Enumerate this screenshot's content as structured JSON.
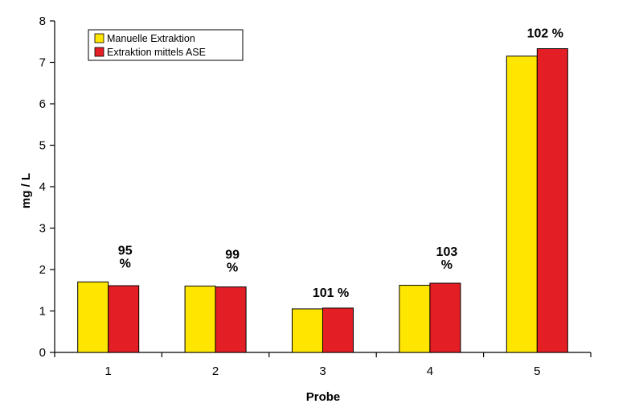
{
  "chart_data": {
    "type": "bar",
    "xlabel": "Probe",
    "ylabel": "mg / L",
    "ylim": [
      0,
      8
    ],
    "yticks": [
      0,
      1,
      2,
      3,
      4,
      5,
      6,
      7,
      8
    ],
    "grid": false,
    "legend_position": "top-left",
    "categories": [
      "1",
      "2",
      "3",
      "4",
      "5"
    ],
    "series": [
      {
        "name": "Manuelle Extraktion",
        "color": "#ffe600",
        "values": [
          1.7,
          1.6,
          1.05,
          1.62,
          7.15
        ]
      },
      {
        "name": "Extraktion mittels ASE",
        "color": "#e31e24",
        "values": [
          1.61,
          1.58,
          1.07,
          1.67,
          7.33
        ]
      }
    ],
    "annotations": [
      {
        "category": "1",
        "lines": [
          "95",
          "%"
        ]
      },
      {
        "category": "2",
        "lines": [
          "99",
          "%"
        ]
      },
      {
        "category": "3",
        "lines": [
          "101 %"
        ]
      },
      {
        "category": "4",
        "lines": [
          "103",
          "%"
        ]
      },
      {
        "category": "5",
        "lines": [
          "102 %"
        ]
      }
    ]
  }
}
